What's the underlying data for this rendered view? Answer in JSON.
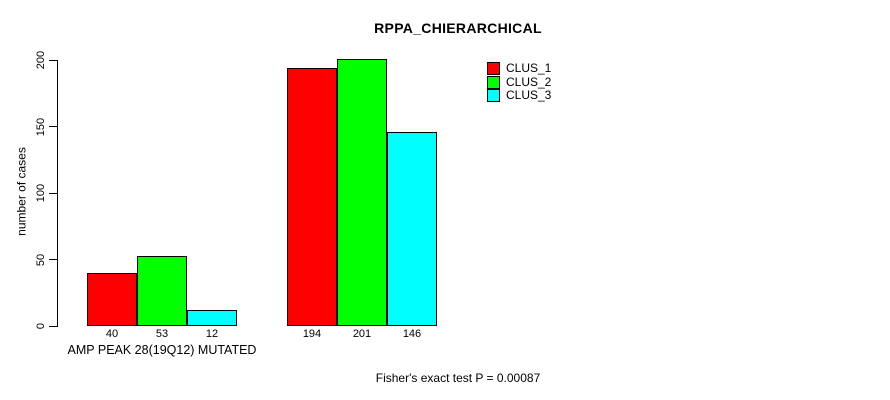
{
  "chart_data": {
    "type": "bar",
    "title": "RPPA_CHIERARCHICAL",
    "ylabel": "number of cases",
    "xlabel": "",
    "ylim": [
      0,
      200
    ],
    "yticks": [
      0,
      50,
      100,
      150,
      200
    ],
    "grid": false,
    "categories": [
      "AMP PEAK 28(19Q12) MUTATED",
      ""
    ],
    "series": [
      {
        "name": "CLUS_1",
        "color": "#FF0000",
        "values": [
          40,
          194
        ]
      },
      {
        "name": "CLUS_2",
        "color": "#00FF00",
        "values": [
          53,
          201
        ]
      },
      {
        "name": "CLUS_3",
        "color": "#00FFFF",
        "values": [
          12,
          146
        ]
      }
    ],
    "show_values": true,
    "legend_position": "top-right",
    "footnote": "Fisher's exact test P = 0.00087",
    "axis_color": "#000000",
    "background": "#FFFFFF"
  }
}
